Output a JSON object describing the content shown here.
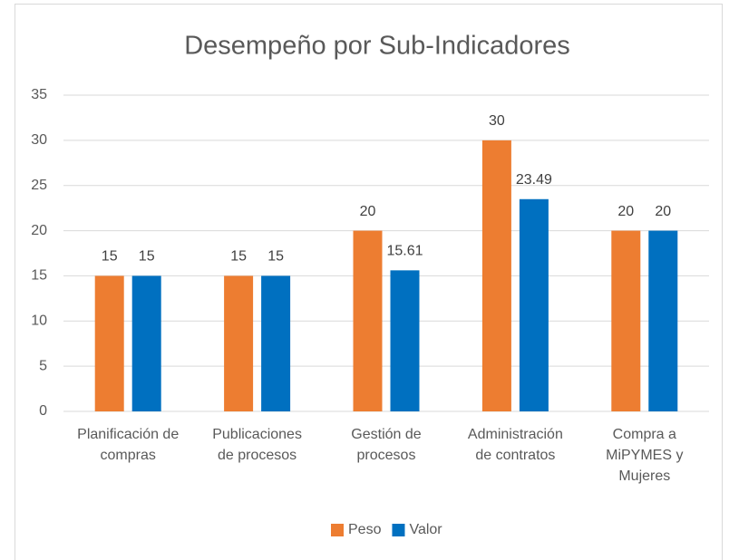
{
  "chart_data": {
    "type": "bar",
    "title": "Desempeño por Sub-Indicadores",
    "categories": [
      [
        "Planificación de",
        "compras"
      ],
      [
        "Publicaciones",
        "de procesos"
      ],
      [
        "Gestión de",
        "procesos"
      ],
      [
        "Administración",
        "de contratos"
      ],
      [
        "Compra a",
        "MiPYMES y",
        "Mujeres"
      ]
    ],
    "series": [
      {
        "name": "Peso",
        "color": "#ed7d31",
        "values": [
          15,
          15,
          20,
          30,
          20
        ]
      },
      {
        "name": "Valor",
        "color": "#0070c0",
        "values": [
          15,
          15,
          15.61,
          23.49,
          20
        ]
      }
    ],
    "ylim": [
      0,
      35
    ],
    "yticks": [
      0,
      5,
      10,
      15,
      20,
      25,
      30,
      35
    ],
    "grid": true,
    "legend": "bottom"
  }
}
